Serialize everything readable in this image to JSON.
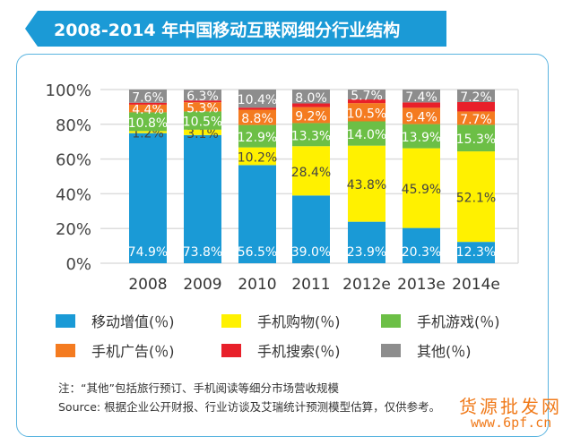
{
  "colors": {
    "banner": "#1b9ad6",
    "frame": "#5ab4e0"
  },
  "chart_data": {
    "type": "bar",
    "stacked": true,
    "title": "2008-2014 年中国移动互联网细分行业结构",
    "categories": [
      "2008",
      "2009",
      "2010",
      "2011",
      "2012e",
      "2013e",
      "2014e"
    ],
    "ylim": [
      0,
      100
    ],
    "yticks": [
      "0%",
      "20%",
      "40%",
      "60%",
      "80%",
      "100%"
    ],
    "grid": true,
    "legend": "bottom",
    "series": [
      {
        "name": "移动增值(％)",
        "color": "#1a9ad6",
        "label_color": "#fff",
        "values": [
          74.9,
          73.8,
          56.5,
          39.0,
          23.9,
          20.3,
          12.3
        ],
        "labels": [
          "74.9%",
          "73.8%",
          "56.5%",
          "39.0%",
          "23.9%",
          "20.3%",
          "12.3%"
        ]
      },
      {
        "name": "手机购物(％)",
        "color": "#fff100",
        "label_color": "#444",
        "values": [
          1.2,
          3.1,
          10.2,
          28.4,
          43.8,
          45.9,
          52.1
        ],
        "labels": [
          "1.2%",
          "3.1%",
          "10.2%",
          "28.4%",
          "43.8%",
          "45.9%",
          "52.1%"
        ]
      },
      {
        "name": "手机游戏(％)",
        "color": "#6cbf46",
        "label_color": "#fff",
        "values": [
          10.8,
          10.5,
          12.9,
          13.3,
          14.0,
          13.9,
          15.3
        ],
        "labels": [
          "10.8%",
          "10.5%",
          "12.9%",
          "13.3%",
          "14.0%",
          "13.9%",
          "15.3%"
        ]
      },
      {
        "name": "手机广告(％)",
        "color": "#f47b20",
        "label_color": "#fff",
        "values": [
          4.4,
          5.3,
          8.8,
          9.2,
          10.5,
          9.4,
          7.7
        ],
        "labels": [
          "4.4%",
          "5.3%",
          "8.8%",
          "9.2%",
          "10.5%",
          "9.4%",
          "7.7%"
        ]
      },
      {
        "name": "手机搜索(％)",
        "color": "#e8202a",
        "label_color": "#fff",
        "values": [
          1.1,
          1.0,
          1.2,
          2.1,
          2.1,
          3.1,
          5.4
        ],
        "labels": [
          "",
          "",
          "",
          "",
          "",
          "",
          ""
        ]
      },
      {
        "name": "其他(％)",
        "color": "#8d8d8d",
        "label_color": "#fff",
        "values": [
          7.6,
          6.3,
          10.4,
          8.0,
          5.7,
          7.4,
          7.2
        ],
        "labels": [
          "7.6%",
          "6.3%",
          "10.4%",
          "8.0%",
          "5.7%",
          "7.4%",
          "7.2%"
        ]
      }
    ]
  },
  "notes": {
    "note": "注：“其他”包括旅行预订、手机阅读等细分市场营收规模",
    "source": "Source: 根据企业公开财报、行业访谈及艾瑞统计预测模型估算，仅供参考。"
  },
  "watermark": {
    "line1": "货源批发网",
    "line2": "www.6pf.cn"
  }
}
